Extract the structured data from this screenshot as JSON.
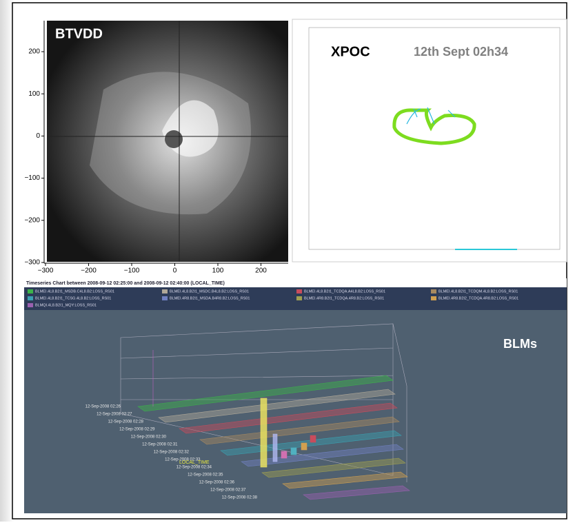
{
  "btvdd": {
    "label": "BTVDD",
    "y_ticks": [
      "200",
      "100",
      "0",
      "−100",
      "−200",
      "−300"
    ],
    "x_ticks": [
      "−300",
      "−200",
      "−100",
      "0",
      "100",
      "200"
    ]
  },
  "xpoc": {
    "label": "XPOC",
    "timestamp": "12th Sept 02h34"
  },
  "blm": {
    "label": "BLMs",
    "title": "Timeseries Chart between 2008-09-12 02:25:00 and 2008-09-12 02:40:00 (LOCAL_TIME)",
    "legend": [
      "BLMEI.4L8.B2I1_MSDB.C4L8.B2:LOSS_RS01",
      "BLMEI.4L8.B2I1_MSDC.B4L8.B2:LOSS_RS01",
      "BLMEI.4L8.B2I1_TCDQA.A4L8.B2:LOSS_RS01",
      "BLMEI.4L8.B2I1_TCDQM.4L8.B2:LOSS_RS01",
      "BLMEI.4L8.B2I1_TCSG.4L8.B2:LOSS_RS01",
      "BLMEI.4R8.B2I1_MSDA.B4R8.B2:LOSS_RS01",
      "BLMEI.4R8.B2I1_TCDQA.4R8.B2:LOSS_RS01",
      "BLMEI.4R8.B2I2_TCDQA.4R8.B2:LOSS_RS01",
      "BLMQI.4L8.B2I1_MQY:LOSS_RS01"
    ],
    "times": [
      "12-Sep-2008 02:26",
      "12-Sep-2008 02:27",
      "12-Sep-2008 02:28",
      "12-Sep-2008 02:29",
      "12-Sep-2008 02:30",
      "12-Sep-2008 02:31",
      "12-Sep-2008 02:32",
      "12-Sep-2008 02:33",
      "12-Sep-2008 02:34",
      "12-Sep-2008 02:35",
      "12-Sep-2008 02:36",
      "12-Sep-2008 02:37",
      "12-Sep-2008 02:38"
    ],
    "axis_label": "LOCAL_TIME"
  }
}
